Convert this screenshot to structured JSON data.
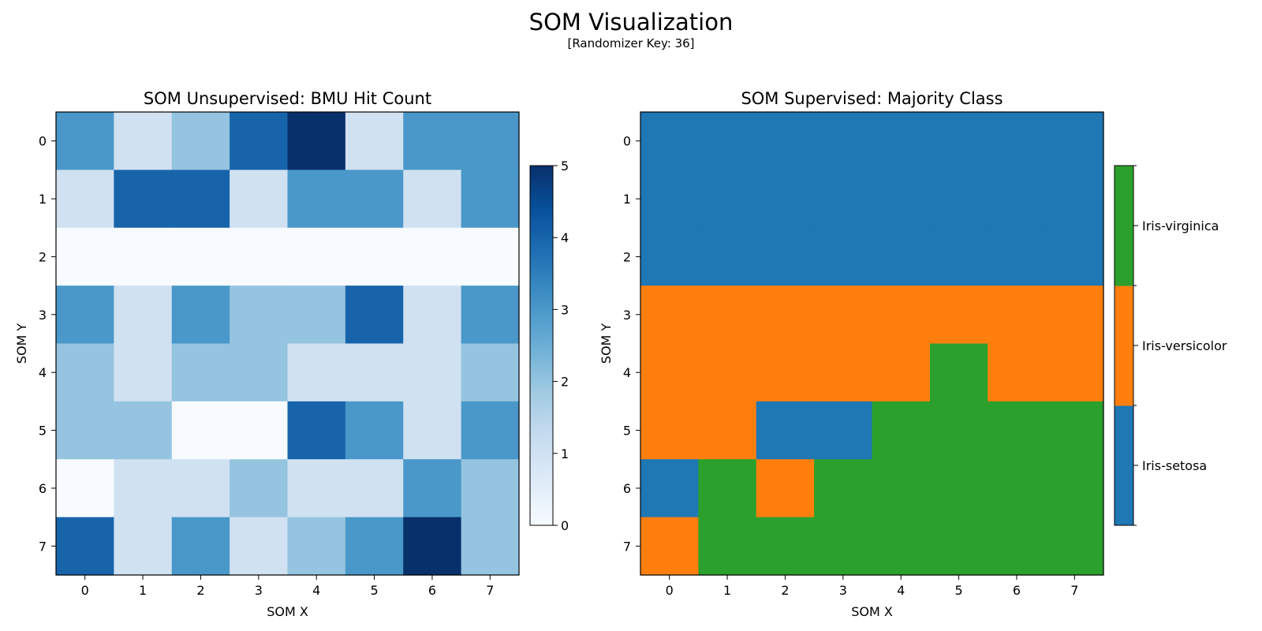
{
  "figure": {
    "title": "SOM Visualization",
    "subtitle": "[Randomizer Key: 36]"
  },
  "chart_data": [
    {
      "type": "heatmap",
      "title": "SOM Unsupervised: BMU Hit Count",
      "xlabel": "SOM X",
      "ylabel": "SOM Y",
      "x_ticks": [
        "0",
        "1",
        "2",
        "3",
        "4",
        "5",
        "6",
        "7"
      ],
      "y_ticks": [
        "0",
        "1",
        "2",
        "3",
        "4",
        "5",
        "6",
        "7"
      ],
      "colormap": "Blues",
      "colormap_stops": [
        "#f7fbff",
        "#deebf7",
        "#c6dbef",
        "#9ecae1",
        "#6baed6",
        "#4292c6",
        "#2171b5",
        "#08519c",
        "#08306b"
      ],
      "vmin": 0,
      "vmax": 5,
      "colorbar_ticks": [
        "0",
        "1",
        "2",
        "3",
        "4",
        "5"
      ],
      "grid": false,
      "values": [
        [
          3,
          1,
          2,
          4,
          5,
          1,
          3,
          3
        ],
        [
          1,
          4,
          4,
          1,
          3,
          3,
          1,
          3
        ],
        [
          0,
          0,
          0,
          0,
          0,
          0,
          0,
          0
        ],
        [
          3,
          1,
          3,
          2,
          2,
          4,
          1,
          3
        ],
        [
          2,
          1,
          2,
          2,
          1,
          1,
          1,
          2
        ],
        [
          2,
          2,
          0,
          0,
          4,
          3,
          1,
          3
        ],
        [
          0,
          1,
          1,
          2,
          1,
          1,
          3,
          2
        ],
        [
          4,
          1,
          3,
          1,
          2,
          3,
          5,
          2
        ]
      ]
    },
    {
      "type": "heatmap",
      "title": "SOM Supervised: Majority Class",
      "xlabel": "SOM X",
      "ylabel": "SOM Y",
      "x_ticks": [
        "0",
        "1",
        "2",
        "3",
        "4",
        "5",
        "6",
        "7"
      ],
      "y_ticks": [
        "0",
        "1",
        "2",
        "3",
        "4",
        "5",
        "6",
        "7"
      ],
      "classes": [
        "Iris-setosa",
        "Iris-versicolor",
        "Iris-virginica"
      ],
      "class_colors": [
        "#1f77b4",
        "#ff7f0e",
        "#2ca02c"
      ],
      "grid": false,
      "values": [
        [
          0,
          0,
          0,
          0,
          0,
          0,
          0,
          0
        ],
        [
          0,
          0,
          0,
          0,
          0,
          0,
          0,
          0
        ],
        [
          0,
          0,
          0,
          0,
          0,
          0,
          0,
          0
        ],
        [
          1,
          1,
          1,
          1,
          1,
          1,
          1,
          1
        ],
        [
          1,
          1,
          1,
          1,
          1,
          2,
          1,
          1
        ],
        [
          1,
          1,
          0,
          0,
          2,
          2,
          2,
          2
        ],
        [
          0,
          2,
          1,
          2,
          2,
          2,
          2,
          2
        ],
        [
          1,
          2,
          2,
          2,
          2,
          2,
          2,
          2
        ]
      ]
    }
  ]
}
